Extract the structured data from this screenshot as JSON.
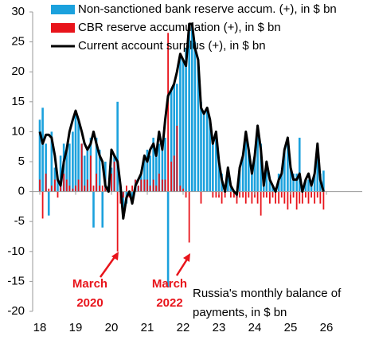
{
  "chart_data": {
    "type": "bar",
    "x": [
      18,
      18.08,
      18.17,
      18.25,
      18.33,
      18.42,
      18.5,
      18.58,
      18.67,
      18.75,
      18.83,
      18.92,
      19,
      19.08,
      19.17,
      19.25,
      19.33,
      19.42,
      19.5,
      19.58,
      19.67,
      19.75,
      19.83,
      19.92,
      20,
      20.08,
      20.17,
      20.25,
      20.33,
      20.42,
      20.5,
      20.58,
      20.67,
      20.75,
      20.83,
      20.92,
      21,
      21.08,
      21.17,
      21.25,
      21.33,
      21.42,
      21.5,
      21.58,
      21.67,
      21.75,
      21.83,
      21.92,
      22,
      22.08,
      22.17,
      22.25,
      22.33,
      22.42,
      22.5,
      22.58,
      22.67,
      22.75,
      22.83,
      22.92,
      23,
      23.08,
      23.17,
      23.25,
      23.33,
      23.42,
      23.5,
      23.58,
      23.67,
      23.75,
      23.83,
      23.92,
      24,
      24.08,
      24.17,
      24.25,
      24.33,
      24.42,
      24.5,
      24.58,
      24.67,
      24.75,
      24.83,
      24.92,
      25,
      25.08,
      25.17,
      25.25,
      25.33,
      25.42,
      25.5,
      25.58,
      25.67,
      25.75,
      25.83,
      25.92
    ],
    "series": [
      {
        "name": "Non-sanctioned bank reserve accum. (+), in $ bn",
        "type": "bar",
        "color": "#1ba1dd",
        "values": [
          12,
          14,
          8,
          -4,
          10,
          4,
          2,
          6,
          8,
          7,
          8,
          10,
          13,
          12,
          8,
          6,
          7,
          9,
          -6,
          9,
          7,
          -6,
          5,
          1,
          4,
          6,
          15,
          1,
          -3,
          -2,
          0,
          -2,
          2,
          1,
          3,
          6,
          7,
          6,
          9,
          6,
          8,
          7,
          9,
          -16,
          17,
          18,
          18,
          23,
          22,
          24,
          28,
          28,
          25,
          22,
          15,
          13,
          14,
          12,
          8,
          9,
          5,
          3,
          1,
          4,
          1,
          0,
          -1,
          4,
          6,
          9,
          7,
          3,
          6,
          10,
          8,
          2,
          5,
          2,
          1,
          0,
          3,
          3,
          7,
          9,
          4,
          3,
          3,
          9,
          1,
          2,
          2,
          1,
          3,
          7,
          3,
          3.5
        ]
      },
      {
        "name": "CBR reserve accumulation (+), in $ bn",
        "type": "bar",
        "color": "#e8141b",
        "values": [
          2,
          -4.5,
          3,
          0.5,
          1,
          2,
          -1,
          1,
          3,
          2,
          1,
          0.5,
          1,
          2,
          8,
          1,
          2,
          6,
          1,
          3,
          1,
          1,
          2,
          1,
          3,
          5,
          -10,
          -2,
          -1,
          1,
          -1,
          1,
          2,
          1,
          2,
          2,
          2,
          1,
          2,
          1,
          3,
          2,
          2,
          26.5,
          5,
          6,
          11,
          1,
          0.5,
          -1,
          -8.5,
          0,
          0,
          0,
          -2,
          0,
          0,
          0,
          -1,
          -1,
          -1,
          -2,
          -1,
          0,
          -1,
          -1,
          -2,
          -1,
          -1,
          -2,
          -1,
          -2,
          -1,
          -2,
          -4,
          -1,
          -1,
          -2,
          -1,
          -2,
          -2,
          -1,
          -2,
          -3,
          -2,
          -1,
          -3,
          -2,
          -2,
          -1,
          -2,
          -1,
          -2,
          -1,
          -2,
          -3
        ]
      },
      {
        "name": "Current account surplus (+), in $ bn",
        "type": "line",
        "color": "#000000",
        "values": [
          10,
          8,
          9.5,
          9.5,
          9,
          6,
          2,
          1,
          5,
          7,
          10,
          12,
          13.5,
          12,
          10,
          8,
          7,
          8,
          10,
          8,
          6,
          5,
          1,
          0,
          7,
          6,
          5,
          1,
          -4.5,
          -1,
          0,
          -2,
          1,
          2,
          3,
          6,
          5,
          7,
          8,
          6,
          10,
          7,
          12,
          16,
          17,
          18,
          20,
          23,
          22,
          21,
          28,
          28,
          24,
          22,
          14,
          13,
          14,
          12,
          8,
          10,
          5,
          2,
          0,
          4,
          1,
          0,
          -0.5,
          4,
          6,
          10,
          7,
          3,
          6,
          11,
          7,
          1,
          5,
          2,
          1,
          0,
          2,
          3,
          7,
          9,
          4,
          2,
          2,
          3,
          0,
          2,
          3,
          1,
          3,
          8,
          2,
          0
        ]
      }
    ],
    "xlim": [
      17.8,
      27
    ],
    "xticks": [
      18,
      19,
      20,
      21,
      22,
      23,
      24,
      25,
      26
    ],
    "ylim": [
      -20,
      30
    ],
    "yticks": [
      -20,
      -15,
      -10,
      -5,
      0,
      5,
      10,
      15,
      20,
      25,
      30
    ],
    "grid": false,
    "legend": "top-left",
    "annotations": [
      {
        "lines": [
          "March",
          "2020"
        ],
        "color": "#e8141b"
      },
      {
        "lines": [
          "March",
          "2022"
        ],
        "color": "#e8141b"
      },
      {
        "lines": [
          "Russia's monthly balance of",
          "payments, in $ bn"
        ],
        "color": "#000000"
      }
    ]
  }
}
